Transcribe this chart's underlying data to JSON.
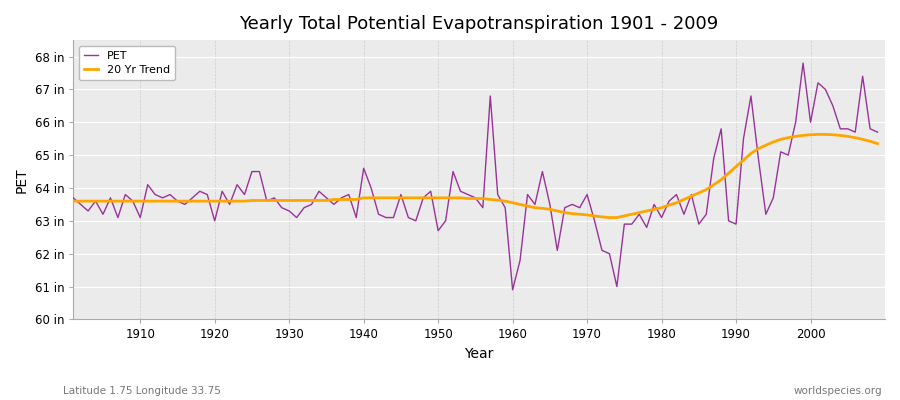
{
  "title": "Yearly Total Potential Evapotranspiration 1901 - 2009",
  "ylabel": "PET",
  "xlabel": "Year",
  "subtitle": "Latitude 1.75 Longitude 33.75",
  "watermark": "worldspecies.org",
  "pet_color": "#993399",
  "trend_color": "#FFA500",
  "background_color": "#FFFFFF",
  "plot_bg_color": "#EBEBEB",
  "ylim": [
    60,
    68.5
  ],
  "yticks": [
    60,
    61,
    62,
    63,
    64,
    65,
    66,
    67,
    68
  ],
  "ytick_labels": [
    "60 in",
    "61 in",
    "62 in",
    "63 in",
    "64 in",
    "65 in",
    "66 in",
    "67 in",
    "68 in"
  ],
  "years": [
    1901,
    1902,
    1903,
    1904,
    1905,
    1906,
    1907,
    1908,
    1909,
    1910,
    1911,
    1912,
    1913,
    1914,
    1915,
    1916,
    1917,
    1918,
    1919,
    1920,
    1921,
    1922,
    1923,
    1924,
    1925,
    1926,
    1927,
    1928,
    1929,
    1930,
    1931,
    1932,
    1933,
    1934,
    1935,
    1936,
    1937,
    1938,
    1939,
    1940,
    1941,
    1942,
    1943,
    1944,
    1945,
    1946,
    1947,
    1948,
    1949,
    1950,
    1951,
    1952,
    1953,
    1954,
    1955,
    1956,
    1957,
    1958,
    1959,
    1960,
    1961,
    1962,
    1963,
    1964,
    1965,
    1966,
    1967,
    1968,
    1969,
    1970,
    1971,
    1972,
    1973,
    1974,
    1975,
    1976,
    1977,
    1978,
    1979,
    1980,
    1981,
    1982,
    1983,
    1984,
    1985,
    1986,
    1987,
    1988,
    1989,
    1990,
    1991,
    1992,
    1993,
    1994,
    1995,
    1996,
    1997,
    1998,
    1999,
    2000,
    2001,
    2002,
    2003,
    2004,
    2005,
    2006,
    2007,
    2008,
    2009
  ],
  "pet": [
    63.7,
    63.5,
    63.3,
    63.6,
    63.2,
    63.7,
    63.1,
    63.8,
    63.6,
    63.1,
    64.1,
    63.8,
    63.7,
    63.8,
    63.6,
    63.5,
    63.7,
    63.9,
    63.8,
    63.0,
    63.9,
    63.5,
    64.1,
    63.8,
    64.5,
    64.5,
    63.6,
    63.7,
    63.4,
    63.3,
    63.1,
    63.4,
    63.5,
    63.9,
    63.7,
    63.5,
    63.7,
    63.8,
    63.1,
    64.6,
    64.0,
    63.2,
    63.1,
    63.1,
    63.8,
    63.1,
    63.0,
    63.7,
    63.9,
    62.7,
    63.0,
    64.5,
    63.9,
    63.8,
    63.7,
    63.4,
    66.8,
    63.8,
    63.4,
    60.9,
    61.8,
    63.8,
    63.5,
    64.5,
    63.5,
    62.1,
    63.4,
    63.5,
    63.4,
    63.8,
    63.0,
    62.1,
    62.0,
    61.0,
    62.9,
    62.9,
    63.2,
    62.8,
    63.5,
    63.1,
    63.6,
    63.8,
    63.2,
    63.8,
    62.9,
    63.2,
    64.9,
    65.8,
    63.0,
    62.9,
    65.5,
    66.8,
    64.9,
    63.2,
    63.7,
    65.1,
    65.0,
    66.0,
    67.8,
    66.0,
    67.2,
    67.0,
    66.5,
    65.8,
    65.8,
    65.7,
    67.4,
    65.8,
    65.7
  ],
  "trend": [
    63.6,
    63.6,
    63.6,
    63.6,
    63.6,
    63.6,
    63.6,
    63.6,
    63.6,
    63.6,
    63.6,
    63.6,
    63.6,
    63.6,
    63.6,
    63.6,
    63.6,
    63.6,
    63.6,
    63.6,
    63.6,
    63.6,
    63.6,
    63.6,
    63.62,
    63.62,
    63.62,
    63.62,
    63.62,
    63.62,
    63.62,
    63.62,
    63.62,
    63.62,
    63.62,
    63.65,
    63.65,
    63.65,
    63.65,
    63.7,
    63.7,
    63.7,
    63.7,
    63.7,
    63.7,
    63.7,
    63.7,
    63.7,
    63.7,
    63.7,
    63.7,
    63.7,
    63.7,
    63.68,
    63.68,
    63.68,
    63.65,
    63.63,
    63.6,
    63.55,
    63.5,
    63.45,
    63.4,
    63.38,
    63.35,
    63.3,
    63.25,
    63.22,
    63.2,
    63.18,
    63.15,
    63.12,
    63.1,
    63.1,
    63.15,
    63.2,
    63.25,
    63.3,
    63.35,
    63.4,
    63.48,
    63.55,
    63.65,
    63.75,
    63.85,
    63.95,
    64.1,
    64.25,
    64.45,
    64.65,
    64.85,
    65.05,
    65.2,
    65.3,
    65.4,
    65.48,
    65.53,
    65.57,
    65.6,
    65.62,
    65.63,
    65.63,
    65.62,
    65.6,
    65.57,
    65.53,
    65.48,
    65.42,
    65.35
  ]
}
